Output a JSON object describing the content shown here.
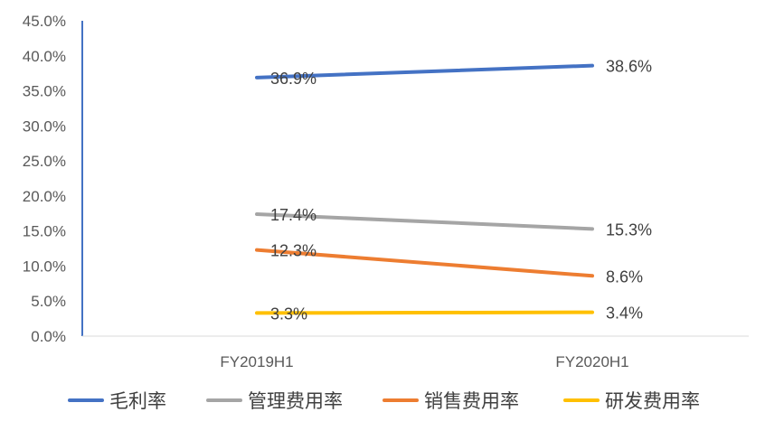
{
  "chart_data": {
    "type": "line",
    "title": "",
    "xlabel": "",
    "ylabel": "",
    "categories": [
      "FY2019H1",
      "FY2020H1"
    ],
    "ylim": [
      0,
      45
    ],
    "yticks": [
      "0.0%",
      "5.0%",
      "10.0%",
      "15.0%",
      "20.0%",
      "25.0%",
      "30.0%",
      "35.0%",
      "40.0%",
      "45.0%"
    ],
    "grid": false,
    "legend_position": "bottom",
    "series": [
      {
        "name": "毛利率",
        "values": [
          36.9,
          38.6
        ],
        "labels": [
          "36.9%",
          "38.6%"
        ],
        "color": "#4472C4"
      },
      {
        "name": "管理费用率",
        "values": [
          17.4,
          15.3
        ],
        "labels": [
          "17.4%",
          "15.3%"
        ],
        "color": "#A5A5A5"
      },
      {
        "name": "销售费用率",
        "values": [
          12.3,
          8.6
        ],
        "labels": [
          "12.3%",
          "8.6%"
        ],
        "color": "#ED7D31"
      },
      {
        "name": "研发费用率",
        "values": [
          3.3,
          3.4
        ],
        "labels": [
          "3.3%",
          "3.4%"
        ],
        "color": "#FFC000"
      }
    ]
  }
}
